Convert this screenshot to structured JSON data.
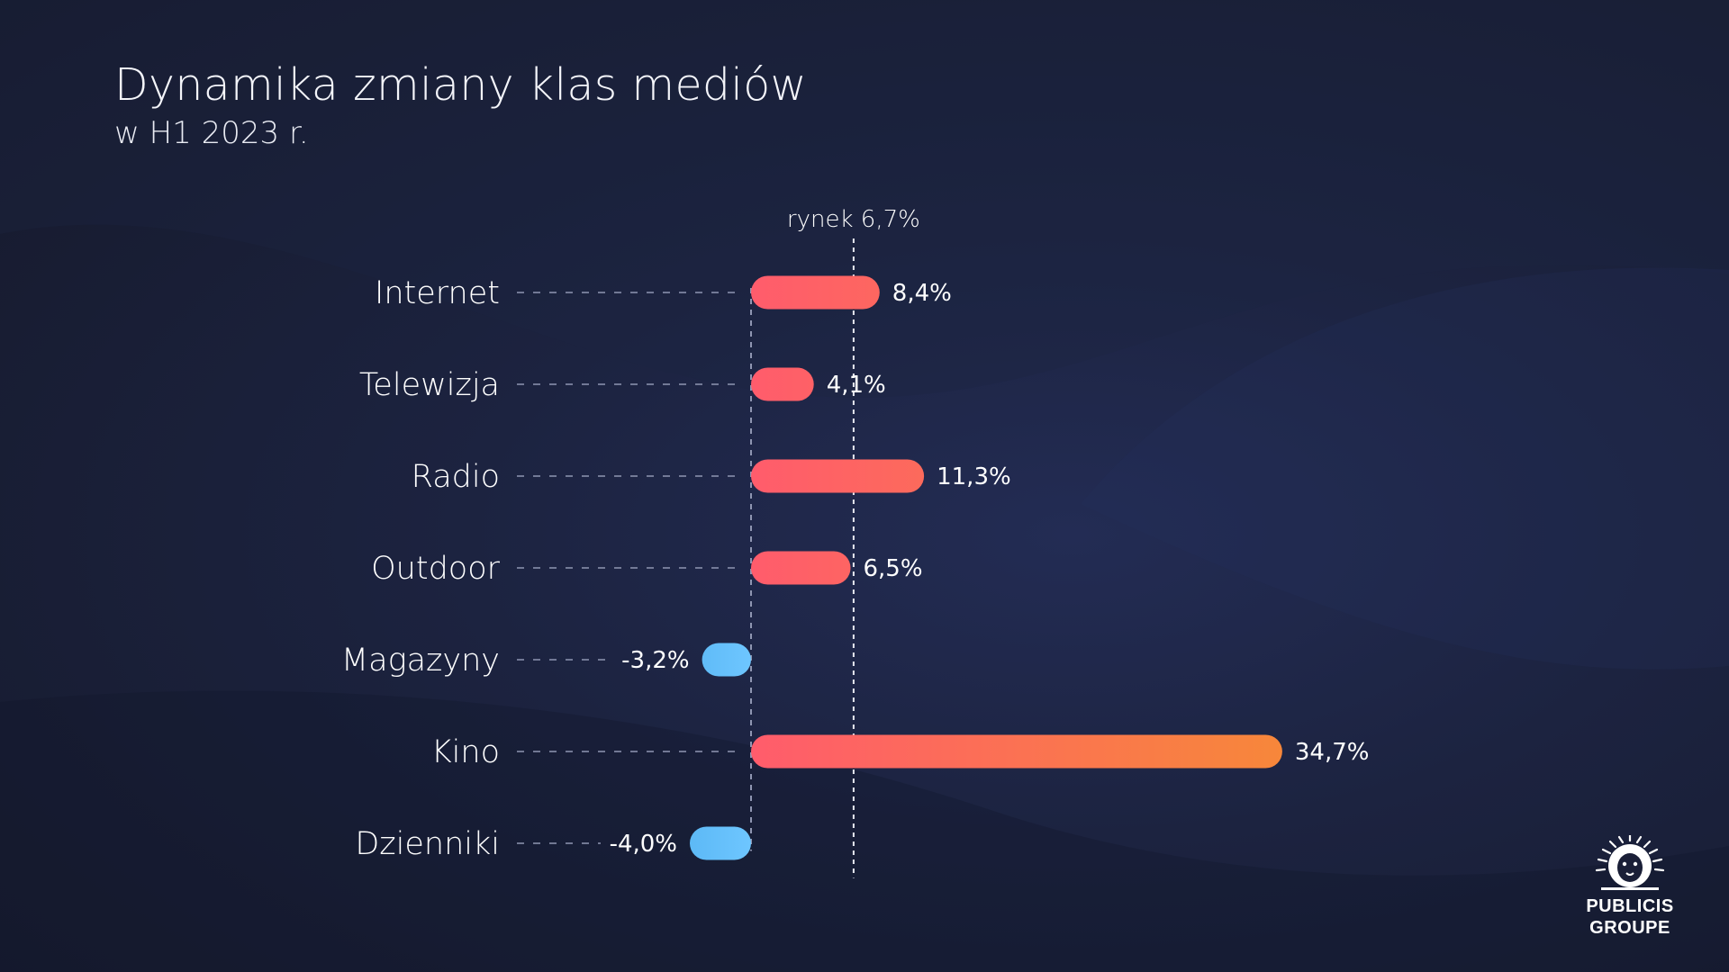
{
  "title": "Dynamika zmiany klas mediów",
  "subtitle": "w H1 2023 r.",
  "logo": {
    "line1": "PUBLICIS",
    "line2": "GROUPE"
  },
  "chart_data": {
    "type": "bar",
    "orientation": "horizontal",
    "categories": [
      "Internet",
      "Telewizja",
      "Radio",
      "Outdoor",
      "Magazyny",
      "Kino",
      "Dzienniki"
    ],
    "values": [
      8.4,
      4.1,
      11.3,
      6.5,
      -3.2,
      34.7,
      -4.0
    ],
    "value_labels": [
      "8,4%",
      "4,1%",
      "11,3%",
      "6,5%",
      "-3,2%",
      "34,7%",
      "-4,0%"
    ],
    "reference_line": {
      "value": 6.7,
      "label": "rynek 6,7%"
    },
    "colors": {
      "positive_start": "#ff5c6c",
      "positive_end": "#f7873a",
      "negative_start": "#5bb8f5",
      "negative_end": "#6ec6ff",
      "guide": "#8f96b2"
    },
    "grid": false,
    "legend": "none"
  }
}
